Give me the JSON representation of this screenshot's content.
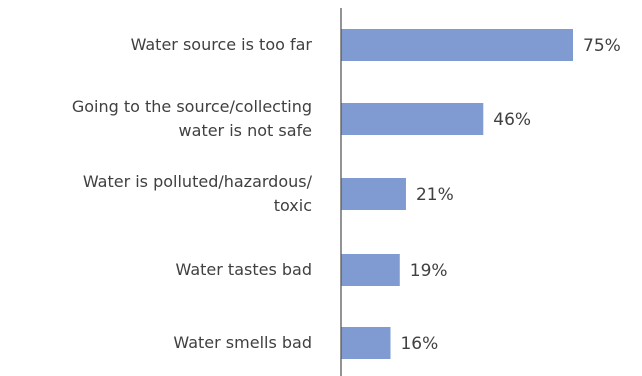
{
  "chart_data": {
    "type": "bar",
    "orientation": "horizontal",
    "categories": [
      [
        "Water source is too far"
      ],
      [
        "Going to the source/collecting",
        "water is not safe"
      ],
      [
        "Water is polluted/hazardous/",
        "toxic"
      ],
      [
        "Water tastes bad"
      ],
      [
        "Water smells bad"
      ]
    ],
    "values": [
      75,
      46,
      21,
      19,
      16
    ],
    "value_labels": [
      "75%",
      "46%",
      "21%",
      "19%",
      "16%"
    ],
    "unit": "%",
    "xlim": [
      0,
      100
    ],
    "bar_color": "#7f9bd2",
    "axis_color": "#595959",
    "title": "",
    "xlabel": "",
    "ylabel": "",
    "grid": false,
    "legend": "none"
  }
}
